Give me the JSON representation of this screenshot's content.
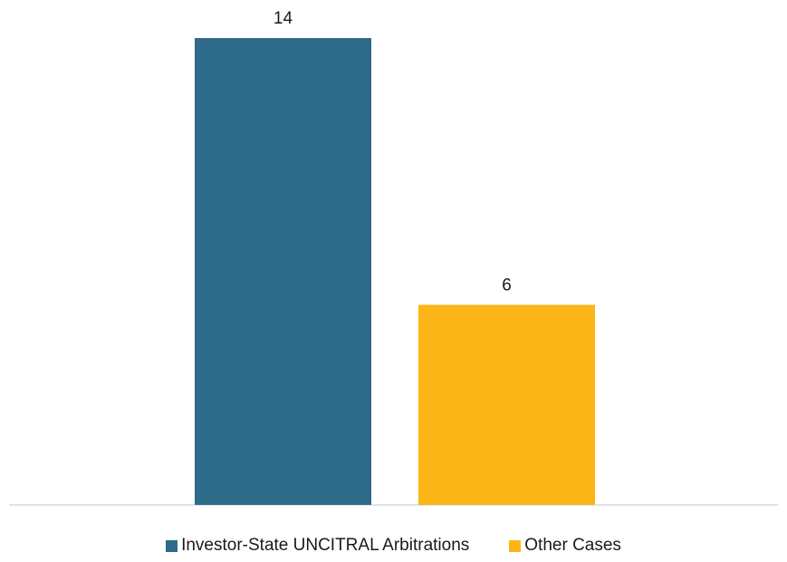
{
  "chart_data": {
    "type": "bar",
    "categories": [
      "Investor-State UNCITRAL Arbitrations",
      "Other Cases"
    ],
    "values": [
      14,
      6
    ],
    "series": [
      {
        "name": "Investor-State UNCITRAL Arbitrations",
        "value": 14,
        "color": "#2e6a8a"
      },
      {
        "name": "Other Cases",
        "value": 6,
        "color": "#fbb516"
      }
    ],
    "ylim": [
      0,
      14
    ],
    "grid": false,
    "legend_position": "bottom"
  }
}
